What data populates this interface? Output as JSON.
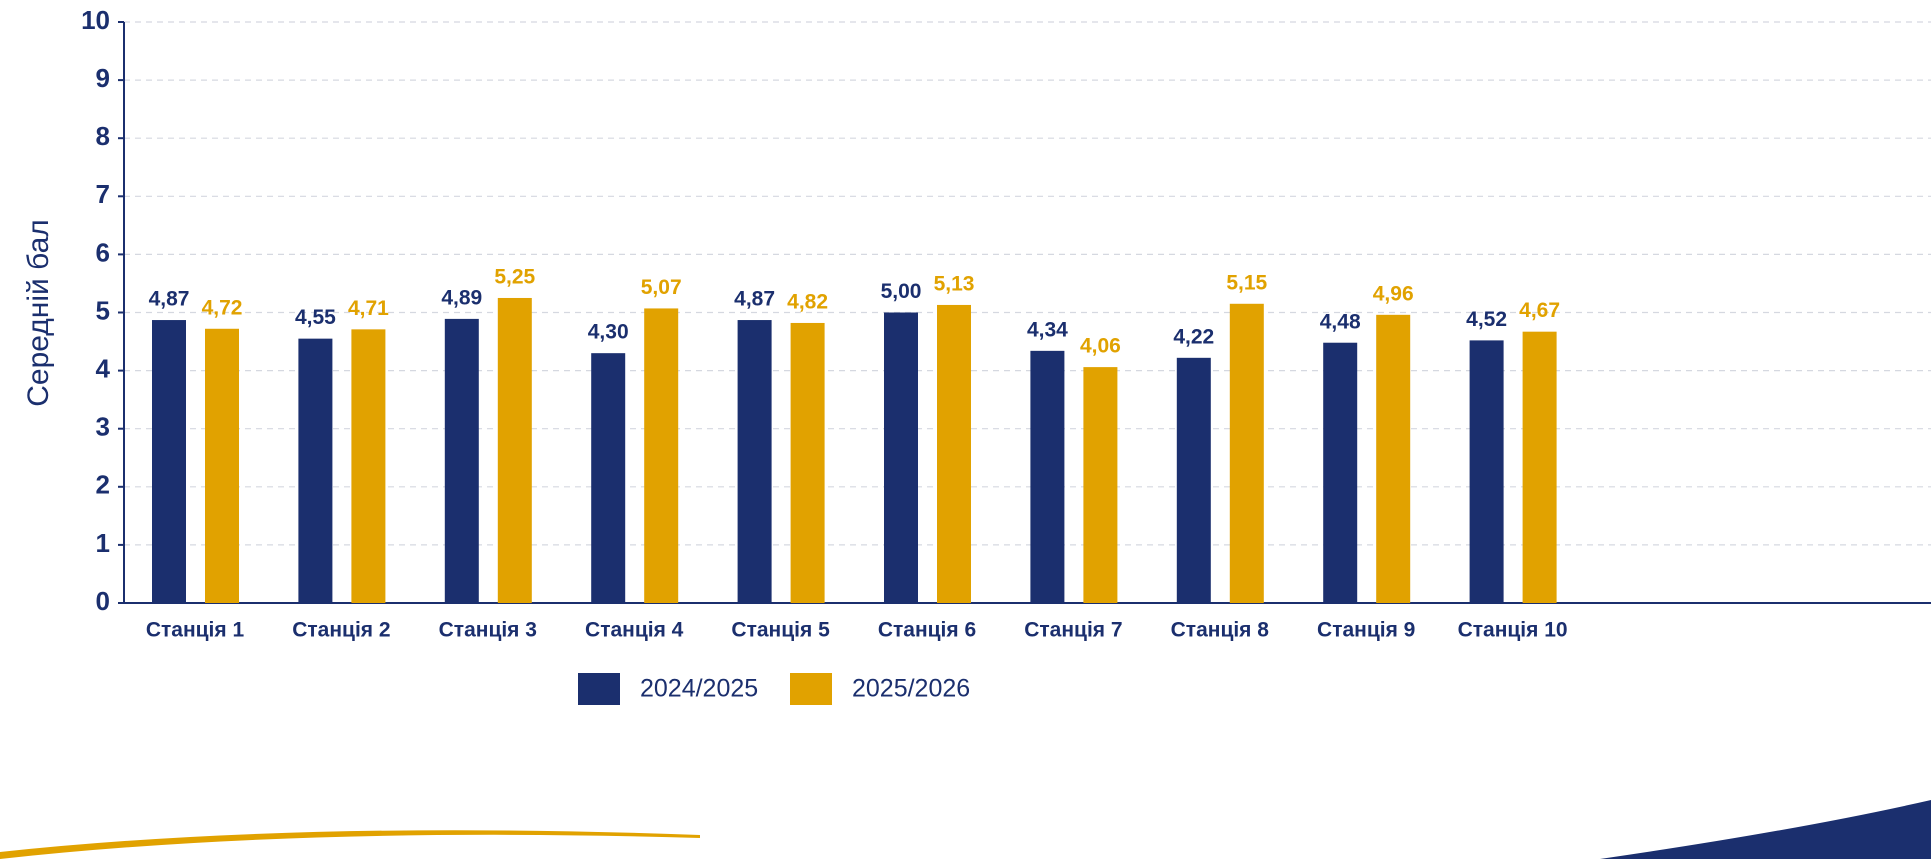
{
  "chart_data": {
    "type": "bar",
    "y_label": "Середній бал",
    "categories": [
      "Станція 1",
      "Станція 2",
      "Станція 3",
      "Станція 4",
      "Станція 5",
      "Станція 6",
      "Станція 7",
      "Станція 8",
      "Станція 9",
      "Станція 10"
    ],
    "series": [
      {
        "name": "2024/2025",
        "color": "#1b2f6e",
        "values": [
          4.87,
          4.55,
          4.89,
          4.3,
          4.87,
          5.0,
          4.34,
          4.22,
          4.48,
          4.52
        ],
        "value_labels": [
          "4,87",
          "4,55",
          "4,89",
          "4,30",
          "4,87",
          "5,00",
          "4,34",
          "4,22",
          "4,48",
          "4,52"
        ]
      },
      {
        "name": "2025/2026",
        "color": "#e1a200",
        "values": [
          4.72,
          4.71,
          5.25,
          5.07,
          4.82,
          5.13,
          4.06,
          5.15,
          4.96,
          4.67
        ],
        "value_labels": [
          "4,72",
          "4,71",
          "5,25",
          "5,07",
          "4,82",
          "5,13",
          "4,06",
          "5,15",
          "4,96",
          "4,67"
        ]
      }
    ],
    "ylim": [
      0,
      10
    ],
    "yticks": [
      0,
      1,
      2,
      3,
      4,
      5,
      6,
      7,
      8,
      9,
      10
    ],
    "grid": true,
    "legend": "bottom"
  }
}
